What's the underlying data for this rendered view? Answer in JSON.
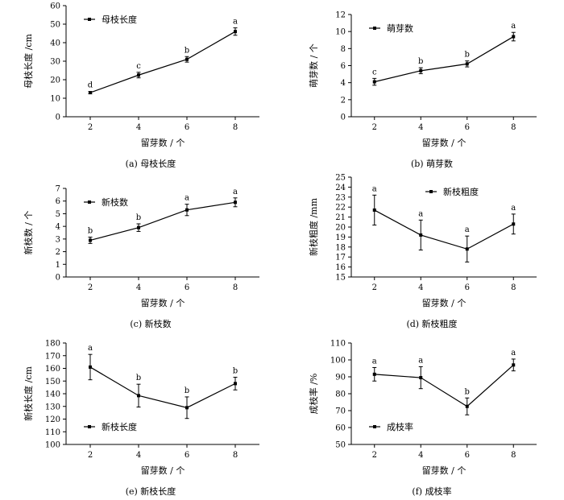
{
  "chart_data": [
    {
      "type": "line",
      "caption": "(a)  母枝长度",
      "xlabel": "留芽数 / 个",
      "ylabel": "母枝长度 /cm",
      "legend": "母枝长度",
      "legend_position": "top-left",
      "x": [
        2,
        4,
        6,
        8
      ],
      "values": [
        13,
        22.5,
        31,
        46
      ],
      "errors": [
        0.6,
        1.5,
        1.5,
        2
      ],
      "letters": [
        "d",
        "c",
        "b",
        "a"
      ],
      "xlim": [
        1,
        9
      ],
      "ylim": [
        0,
        60
      ],
      "yticks": [
        0,
        10,
        20,
        30,
        40,
        50,
        60
      ],
      "xticks": [
        2,
        4,
        6,
        8
      ]
    },
    {
      "type": "line",
      "caption": "(b)  萌芽数",
      "xlabel": "留芽数 / 个",
      "ylabel": "萌芽数 / 个",
      "legend": "萌芽数",
      "legend_position": "top-left",
      "x": [
        2,
        4,
        6,
        8
      ],
      "values": [
        4.1,
        5.4,
        6.2,
        9.4
      ],
      "errors": [
        0.4,
        0.35,
        0.35,
        0.5
      ],
      "letters": [
        "c",
        "b",
        "b",
        "a"
      ],
      "xlim": [
        1,
        9
      ],
      "ylim": [
        0,
        12
      ],
      "yticks": [
        0,
        2,
        4,
        6,
        8,
        10,
        12
      ],
      "xticks": [
        2,
        4,
        6,
        8
      ]
    },
    {
      "type": "line",
      "caption": "(c)  新枝数",
      "xlabel": "留芽数 / 个",
      "ylabel": "新枝数 / 个",
      "legend": "新枝数",
      "legend_position": "top-left",
      "x": [
        2,
        4,
        6,
        8
      ],
      "values": [
        2.9,
        3.9,
        5.3,
        5.9
      ],
      "errors": [
        0.25,
        0.3,
        0.45,
        0.35
      ],
      "letters": [
        "b",
        "b",
        "a",
        "a"
      ],
      "xlim": [
        1,
        9
      ],
      "ylim": [
        0,
        7
      ],
      "yticks": [
        0,
        1,
        2,
        3,
        4,
        5,
        6,
        7
      ],
      "xticks": [
        2,
        4,
        6,
        8
      ]
    },
    {
      "type": "line",
      "caption": "(d)  新枝粗度",
      "xlabel": "留芽数 / 个",
      "ylabel": "新枝粗度 /mm",
      "legend": "新枝粗度",
      "legend_position": "top-right",
      "x": [
        2,
        4,
        6,
        8
      ],
      "values": [
        21.7,
        19.2,
        17.8,
        20.3
      ],
      "errors": [
        1.5,
        1.5,
        1.3,
        1.0
      ],
      "letters": [
        "a",
        "a",
        "a",
        "a"
      ],
      "xlim": [
        1,
        9
      ],
      "ylim": [
        15,
        25
      ],
      "yticks": [
        15,
        16,
        17,
        18,
        19,
        20,
        21,
        22,
        23,
        24,
        25
      ],
      "xticks": [
        2,
        4,
        6,
        8
      ]
    },
    {
      "type": "line",
      "caption": "(e)  新枝长度",
      "xlabel": "留芽数 / 个",
      "ylabel": "新枝长度 /cm",
      "legend": "新枝长度",
      "legend_position": "bottom-left",
      "x": [
        2,
        4,
        6,
        8
      ],
      "values": [
        161,
        138.5,
        129,
        148
      ],
      "errors": [
        10,
        9,
        8.5,
        5
      ],
      "letters": [
        "a",
        "b",
        "b",
        "b"
      ],
      "xlim": [
        1,
        9
      ],
      "ylim": [
        100,
        180
      ],
      "yticks": [
        100,
        110,
        120,
        130,
        140,
        150,
        160,
        170,
        180
      ],
      "xticks": [
        2,
        4,
        6,
        8
      ]
    },
    {
      "type": "line",
      "caption": "(f)  成枝率",
      "xlabel": "留芽数 / 个",
      "ylabel": "成枝率 /%",
      "legend": "成枝率",
      "legend_position": "bottom-left",
      "x": [
        2,
        4,
        6,
        8
      ],
      "values": [
        91.5,
        89.5,
        72.5,
        97
      ],
      "errors": [
        4,
        6.5,
        5,
        3.5
      ],
      "letters": [
        "a",
        "a",
        "b",
        "a"
      ],
      "xlim": [
        1,
        9
      ],
      "ylim": [
        50,
        110
      ],
      "yticks": [
        50,
        60,
        70,
        80,
        90,
        100,
        110
      ],
      "xticks": [
        2,
        4,
        6,
        8
      ]
    }
  ]
}
